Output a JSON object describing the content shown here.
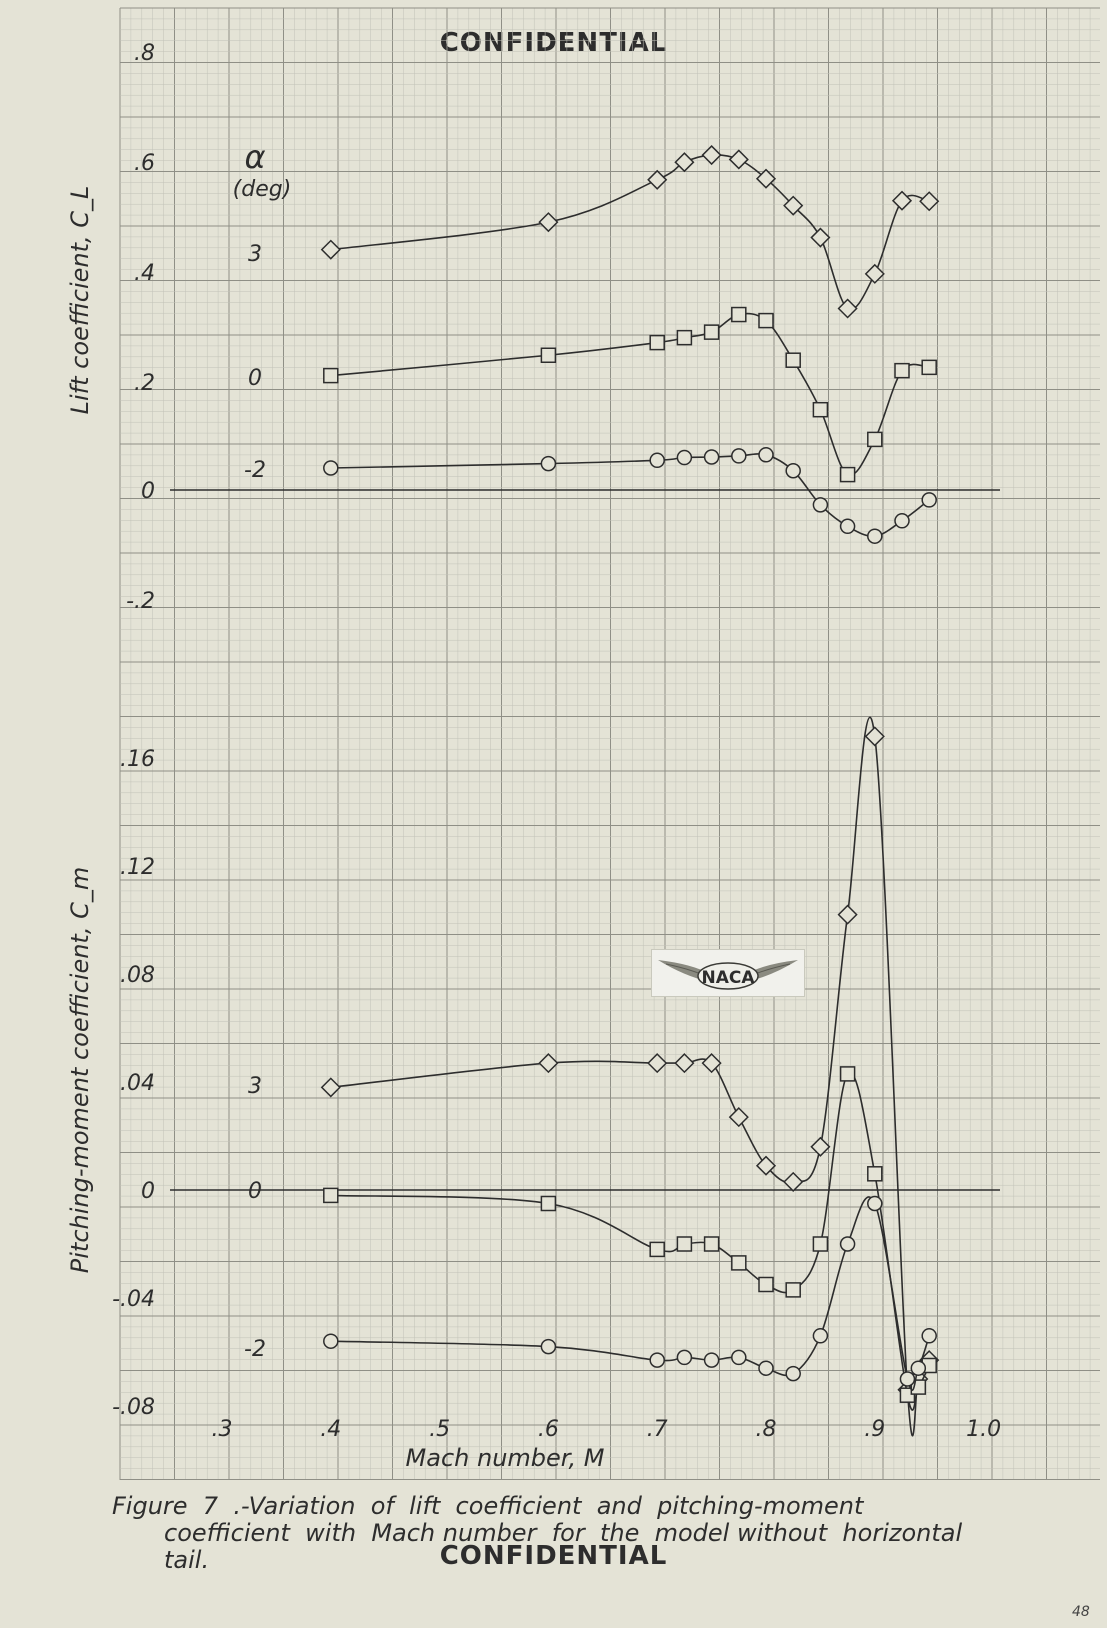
{
  "document": {
    "confidential_top": "CONFIDENTIAL",
    "confidential_bottom": "CONFIDENTIAL",
    "page_number": "48",
    "caption_line1": "Figure  7  .-Variation  of  lift  coefficient  and  pitching-moment",
    "caption_line2": "coefficient  with  Mach number  for  the  model without  horizontal",
    "caption_line3": "tail.",
    "logo_text": "NACA",
    "legend_title_symbol": "α",
    "legend_title_unit": "(deg)"
  },
  "colors": {
    "paper": "#e4e3d6",
    "grid_major": "#8f8f86",
    "grid_minor": "#c2c2b8",
    "ink": "#2d2d2d"
  },
  "chart_data": [
    {
      "type": "line",
      "title": "",
      "ylabel": "Lift coefficient, C_L",
      "xlabel": "",
      "xlim": [
        0.3,
        1.0
      ],
      "ylim": [
        -0.2,
        0.8
      ],
      "yticks": [
        ".8",
        ".6",
        ".4",
        ".2",
        "0",
        "-.2"
      ],
      "series": [
        {
          "name": "3",
          "marker": "diamond",
          "x": [
            0.4,
            0.6,
            0.7,
            0.725,
            0.75,
            0.775,
            0.8,
            0.825,
            0.85,
            0.875,
            0.9,
            0.925,
            0.95
          ],
          "y": [
            0.437,
            0.487,
            0.564,
            0.596,
            0.609,
            0.601,
            0.566,
            0.517,
            0.459,
            0.33,
            0.393,
            0.526,
            0.525
          ]
        },
        {
          "name": "0",
          "marker": "square",
          "x": [
            0.4,
            0.6,
            0.7,
            0.725,
            0.75,
            0.775,
            0.8,
            0.825,
            0.85,
            0.875,
            0.9,
            0.925,
            0.95
          ],
          "y": [
            0.208,
            0.245,
            0.268,
            0.277,
            0.287,
            0.319,
            0.308,
            0.236,
            0.146,
            0.028,
            0.092,
            0.217,
            0.223
          ]
        },
        {
          "name": "-2",
          "marker": "circle",
          "x": [
            0.4,
            0.6,
            0.7,
            0.725,
            0.75,
            0.775,
            0.8,
            0.825,
            0.85,
            0.875,
            0.9,
            0.925,
            0.95
          ],
          "y": [
            0.04,
            0.048,
            0.054,
            0.059,
            0.06,
            0.062,
            0.064,
            0.035,
            -0.027,
            -0.066,
            -0.084,
            -0.056,
            -0.018
          ]
        }
      ]
    },
    {
      "type": "line",
      "title": "",
      "ylabel": "Pitching-moment coefficient, C_m",
      "xlabel": "Mach number, M",
      "xlim": [
        0.3,
        1.0
      ],
      "ylim": [
        -0.08,
        0.16
      ],
      "yticks": [
        ".16",
        ".12",
        ".08",
        ".04",
        "0",
        "-.04",
        "-.08"
      ],
      "xticks": [
        ".3",
        ".4",
        ".5",
        ".6",
        ".7",
        ".8",
        ".9",
        "1.0"
      ],
      "series": [
        {
          "name": "3",
          "marker": "diamond",
          "x": [
            0.4,
            0.6,
            0.7,
            0.725,
            0.75,
            0.775,
            0.8,
            0.825,
            0.85,
            0.875,
            0.9,
            0.93,
            0.94,
            0.95
          ],
          "y": [
            0.038,
            0.047,
            0.047,
            0.047,
            0.047,
            0.027,
            0.009,
            0.003,
            0.016,
            0.102,
            0.168,
            -0.074,
            -0.07,
            -0.063
          ]
        },
        {
          "name": "0",
          "marker": "square",
          "x": [
            0.4,
            0.6,
            0.7,
            0.725,
            0.75,
            0.775,
            0.8,
            0.825,
            0.85,
            0.875,
            0.9,
            0.93,
            0.94,
            0.95
          ],
          "y": [
            -0.002,
            -0.005,
            -0.022,
            -0.02,
            -0.02,
            -0.027,
            -0.035,
            -0.037,
            -0.02,
            0.043,
            0.006,
            -0.076,
            -0.073,
            -0.065
          ]
        },
        {
          "name": "-2",
          "marker": "circle",
          "x": [
            0.4,
            0.6,
            0.7,
            0.725,
            0.75,
            0.775,
            0.8,
            0.825,
            0.85,
            0.875,
            0.9,
            0.93,
            0.94,
            0.95
          ],
          "y": [
            -0.056,
            -0.058,
            -0.063,
            -0.062,
            -0.063,
            -0.062,
            -0.066,
            -0.068,
            -0.054,
            -0.02,
            -0.005,
            -0.07,
            -0.066,
            -0.054
          ]
        }
      ]
    }
  ]
}
